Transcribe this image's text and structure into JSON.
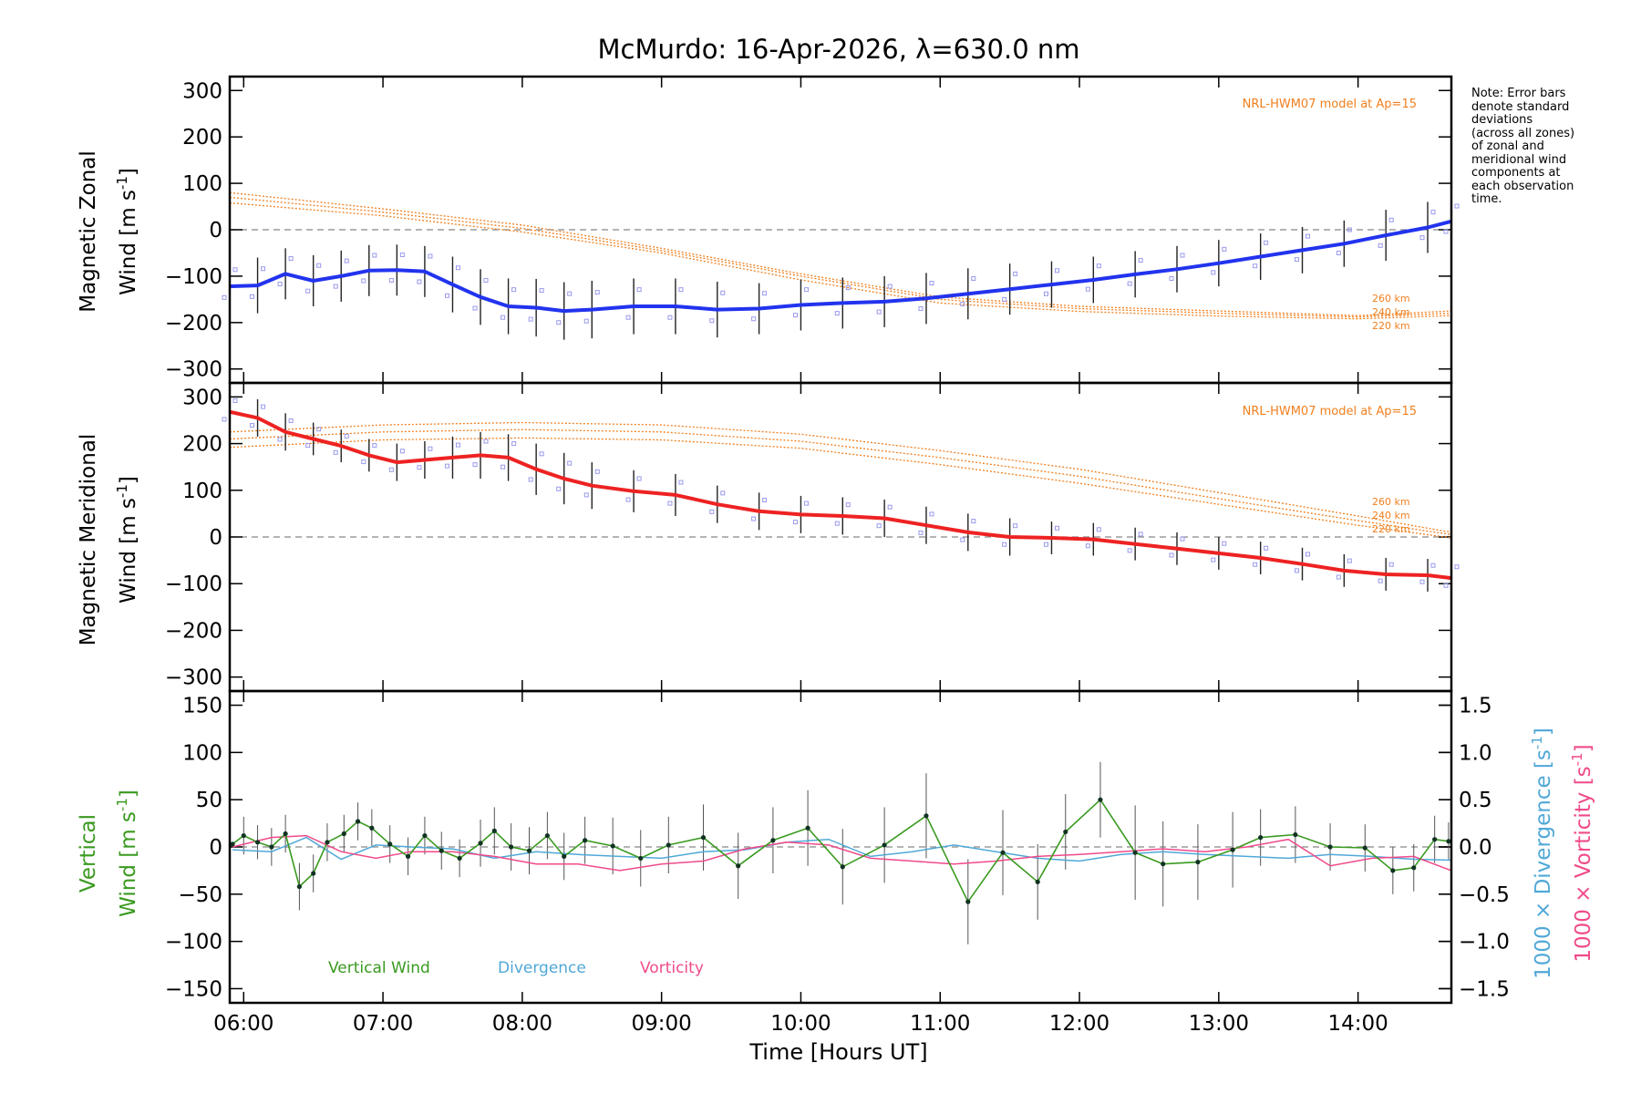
{
  "title": "McMurdo: 16-Apr-2026, λ=630.0 nm",
  "note": "Note: Error bars\ndenote standard\ndeviations\n(across all zones)\nof zonal and\nmeridional wind\ncomponents at\neach observation\ntime.",
  "xaxis": {
    "label": "Time [Hours UT]",
    "range": [
      5.9,
      14.67
    ],
    "ticks": [
      6,
      7,
      8,
      9,
      10,
      11,
      12,
      13,
      14
    ],
    "tick_labels": [
      "06:00",
      "07:00",
      "08:00",
      "09:00",
      "10:00",
      "11:00",
      "12:00",
      "13:00",
      "14:00"
    ]
  },
  "colors": {
    "zonal": "#2233ee",
    "meridional": "#ee2222",
    "model": "#f08020",
    "vertical": "#3a9a20",
    "divergence": "#50a8d8",
    "vorticity": "#f04a8a",
    "scatter": "#9999ee",
    "zero": "#888888"
  },
  "chart_data": [
    {
      "type": "line",
      "name": "zonal",
      "ylabel_line1": "Magnetic Zonal",
      "ylabel_line2": "Wind [m s",
      "ylabel_sup": "-1",
      "ylabel_close": "]",
      "ylim": [
        -330,
        330
      ],
      "yticks": [
        -300,
        -200,
        -100,
        0,
        100,
        200,
        300
      ],
      "model_label": "NRL-HWM07 model at Ap=15",
      "model_heights": [
        "260 km",
        "240 km",
        "220 km"
      ],
      "model_series": [
        {
          "name": "260 km",
          "x": [
            5.9,
            7.0,
            8.0,
            9.0,
            10.0,
            11.0,
            12.0,
            13.0,
            14.0,
            14.67
          ],
          "values": [
            80,
            45,
            10,
            -40,
            -95,
            -145,
            -165,
            -175,
            -185,
            -175
          ]
        },
        {
          "name": "240 km",
          "x": [
            5.9,
            7.0,
            8.0,
            9.0,
            10.0,
            11.0,
            12.0,
            13.0,
            14.0,
            14.67
          ],
          "values": [
            70,
            38,
            3,
            -45,
            -100,
            -150,
            -170,
            -180,
            -188,
            -180
          ]
        },
        {
          "name": "220 km",
          "x": [
            5.9,
            7.0,
            8.0,
            9.0,
            10.0,
            11.0,
            12.0,
            13.0,
            14.0,
            14.67
          ],
          "values": [
            58,
            30,
            -5,
            -50,
            -108,
            -158,
            -176,
            -186,
            -192,
            -185
          ]
        }
      ],
      "series": [
        {
          "name": "Zonal wind",
          "x": [
            5.9,
            6.1,
            6.3,
            6.5,
            6.7,
            6.9,
            7.1,
            7.3,
            7.5,
            7.7,
            7.9,
            8.1,
            8.3,
            8.5,
            8.8,
            9.1,
            9.4,
            9.7,
            10.0,
            10.3,
            10.6,
            10.9,
            11.2,
            11.5,
            11.8,
            12.1,
            12.4,
            12.7,
            13.0,
            13.3,
            13.6,
            13.9,
            14.2,
            14.5,
            14.67
          ],
          "values": [
            -122,
            -120,
            -95,
            -110,
            -100,
            -88,
            -87,
            -90,
            -118,
            -145,
            -165,
            -168,
            -175,
            -172,
            -165,
            -165,
            -172,
            -170,
            -162,
            -158,
            -155,
            -148,
            -138,
            -128,
            -118,
            -108,
            -96,
            -85,
            -72,
            -58,
            -44,
            -30,
            -12,
            5,
            18
          ],
          "errors": [
            60,
            60,
            55,
            55,
            55,
            55,
            55,
            55,
            60,
            60,
            60,
            62,
            62,
            62,
            60,
            60,
            60,
            55,
            55,
            55,
            55,
            55,
            55,
            55,
            50,
            50,
            50,
            50,
            50,
            50,
            50,
            50,
            55,
            55,
            55
          ]
        }
      ]
    },
    {
      "type": "line",
      "name": "meridional",
      "ylabel_line1": "Magnetic Meridional",
      "ylabel_line2": "Wind [m s",
      "ylabel_sup": "-1",
      "ylabel_close": "]",
      "ylim": [
        -330,
        330
      ],
      "yticks": [
        -300,
        -200,
        -100,
        0,
        100,
        200,
        300
      ],
      "model_label": "NRL-HWM07 model at Ap=15",
      "model_heights": [
        "260 km",
        "240 km",
        "220 km"
      ],
      "model_series": [
        {
          "name": "260 km",
          "x": [
            5.9,
            7.0,
            8.0,
            9.0,
            10.0,
            11.0,
            12.0,
            13.0,
            14.0,
            14.67
          ],
          "values": [
            225,
            240,
            245,
            240,
            220,
            185,
            145,
            95,
            45,
            10
          ]
        },
        {
          "name": "240 km",
          "x": [
            5.9,
            7.0,
            8.0,
            9.0,
            10.0,
            11.0,
            12.0,
            13.0,
            14.0,
            14.67
          ],
          "values": [
            210,
            225,
            230,
            225,
            205,
            170,
            130,
            82,
            35,
            5
          ]
        },
        {
          "name": "220 km",
          "x": [
            5.9,
            7.0,
            8.0,
            9.0,
            10.0,
            11.0,
            12.0,
            13.0,
            14.0,
            14.67
          ],
          "values": [
            192,
            208,
            212,
            208,
            190,
            155,
            115,
            70,
            25,
            -2
          ]
        }
      ],
      "series": [
        {
          "name": "Meridional wind",
          "x": [
            5.9,
            6.1,
            6.3,
            6.5,
            6.7,
            6.9,
            7.1,
            7.3,
            7.5,
            7.7,
            7.9,
            8.1,
            8.3,
            8.5,
            8.8,
            9.1,
            9.4,
            9.7,
            10.0,
            10.3,
            10.6,
            10.9,
            11.2,
            11.5,
            11.8,
            12.1,
            12.4,
            12.7,
            13.0,
            13.3,
            13.6,
            13.9,
            14.2,
            14.5,
            14.67
          ],
          "values": [
            268,
            255,
            225,
            210,
            195,
            175,
            160,
            165,
            170,
            175,
            170,
            145,
            125,
            110,
            98,
            90,
            70,
            55,
            48,
            45,
            40,
            25,
            10,
            0,
            -2,
            -5,
            -15,
            -25,
            -35,
            -45,
            -58,
            -72,
            -80,
            -82,
            -88
          ],
          "errors": [
            40,
            40,
            40,
            35,
            35,
            35,
            40,
            40,
            45,
            50,
            50,
            55,
            55,
            50,
            45,
            45,
            40,
            40,
            40,
            40,
            40,
            40,
            40,
            40,
            35,
            35,
            35,
            35,
            35,
            35,
            35,
            35,
            35,
            35,
            40
          ]
        }
      ]
    },
    {
      "type": "line",
      "name": "vertical",
      "ylabel_left1": "Vertical",
      "ylabel_left2": "Wind [m s",
      "ylabel_right1": "1000 × Divergence [s",
      "ylabel_right2": "1000 × Vorticity [s",
      "ylabel_sup": "-1",
      "ylabel_close": "]",
      "ylim": [
        -165,
        165
      ],
      "yticks": [
        -150,
        -100,
        -50,
        0,
        50,
        100,
        150
      ],
      "ylim_right": [
        -1.65,
        1.65
      ],
      "yticks_right": [
        -1.5,
        -1.0,
        -0.5,
        0.0,
        0.5,
        1.0,
        1.5
      ],
      "ytick_labels_right": [
        "−1.5",
        "−1.0",
        "−0.5",
        "0.0",
        "0.5",
        "1.0",
        "1.5"
      ],
      "legend": [
        "Vertical Wind",
        "Divergence",
        "Vorticity"
      ],
      "series": [
        {
          "name": "Vertical Wind",
          "x": [
            5.92,
            6.0,
            6.1,
            6.2,
            6.3,
            6.4,
            6.5,
            6.6,
            6.72,
            6.82,
            6.92,
            7.05,
            7.18,
            7.3,
            7.42,
            7.55,
            7.7,
            7.8,
            7.92,
            8.05,
            8.18,
            8.3,
            8.45,
            8.65,
            8.85,
            9.05,
            9.3,
            9.55,
            9.8,
            10.05,
            10.3,
            10.6,
            10.9,
            11.2,
            11.45,
            11.7,
            11.9,
            12.15,
            12.4,
            12.6,
            12.85,
            13.1,
            13.3,
            13.55,
            13.8,
            14.05,
            14.25,
            14.4,
            14.55,
            14.65
          ],
          "values": [
            3,
            12,
            5,
            0,
            14,
            -42,
            -28,
            5,
            14,
            27,
            20,
            3,
            -10,
            12,
            -4,
            -12,
            4,
            17,
            0,
            -4,
            12,
            -10,
            7,
            1,
            -12,
            2,
            10,
            -20,
            7,
            20,
            -21,
            2,
            33,
            -58,
            -6,
            -37,
            16,
            50,
            -6,
            -18,
            -16,
            -3,
            10,
            13,
            0,
            -1,
            -25,
            -22,
            8,
            6
          ],
          "errors": [
            0,
            20,
            18,
            20,
            20,
            25,
            20,
            20,
            20,
            20,
            20,
            20,
            20,
            20,
            20,
            20,
            25,
            25,
            25,
            25,
            25,
            25,
            25,
            30,
            30,
            30,
            35,
            35,
            35,
            40,
            40,
            40,
            45,
            45,
            45,
            40,
            40,
            40,
            50,
            45,
            40,
            40,
            30,
            30,
            25,
            25,
            25,
            25,
            25,
            20
          ]
        },
        {
          "name": "Divergence",
          "x": [
            5.92,
            6.2,
            6.45,
            6.7,
            6.95,
            7.2,
            7.5,
            7.8,
            8.1,
            8.4,
            8.7,
            9.0,
            9.3,
            9.6,
            9.9,
            10.2,
            10.5,
            10.8,
            11.1,
            11.4,
            11.7,
            12.0,
            12.3,
            12.6,
            12.9,
            13.2,
            13.5,
            13.8,
            14.1,
            14.4,
            14.67
          ],
          "values": [
            -0.03,
            -0.05,
            0.1,
            -0.13,
            0.02,
            0.0,
            -0.02,
            -0.12,
            -0.05,
            -0.08,
            -0.1,
            -0.12,
            -0.05,
            -0.03,
            0.05,
            0.08,
            -0.1,
            -0.05,
            0.02,
            -0.05,
            -0.12,
            -0.15,
            -0.08,
            -0.05,
            -0.08,
            -0.1,
            -0.12,
            -0.08,
            -0.1,
            -0.13,
            -0.14
          ]
        },
        {
          "name": "Vorticity",
          "x": [
            5.92,
            6.2,
            6.45,
            6.7,
            6.95,
            7.2,
            7.5,
            7.8,
            8.1,
            8.4,
            8.7,
            9.0,
            9.3,
            9.6,
            9.9,
            10.2,
            10.5,
            10.8,
            11.1,
            11.4,
            11.7,
            12.0,
            12.3,
            12.6,
            12.9,
            13.2,
            13.5,
            13.8,
            14.1,
            14.4,
            14.67
          ],
          "values": [
            0.0,
            0.1,
            0.12,
            -0.05,
            -0.12,
            -0.05,
            -0.05,
            -0.1,
            -0.18,
            -0.18,
            -0.25,
            -0.18,
            -0.15,
            -0.02,
            0.05,
            0.02,
            -0.12,
            -0.15,
            -0.18,
            -0.15,
            -0.1,
            -0.08,
            -0.05,
            -0.02,
            -0.05,
            0.0,
            0.08,
            -0.2,
            -0.12,
            -0.1,
            -0.25
          ]
        }
      ]
    }
  ]
}
